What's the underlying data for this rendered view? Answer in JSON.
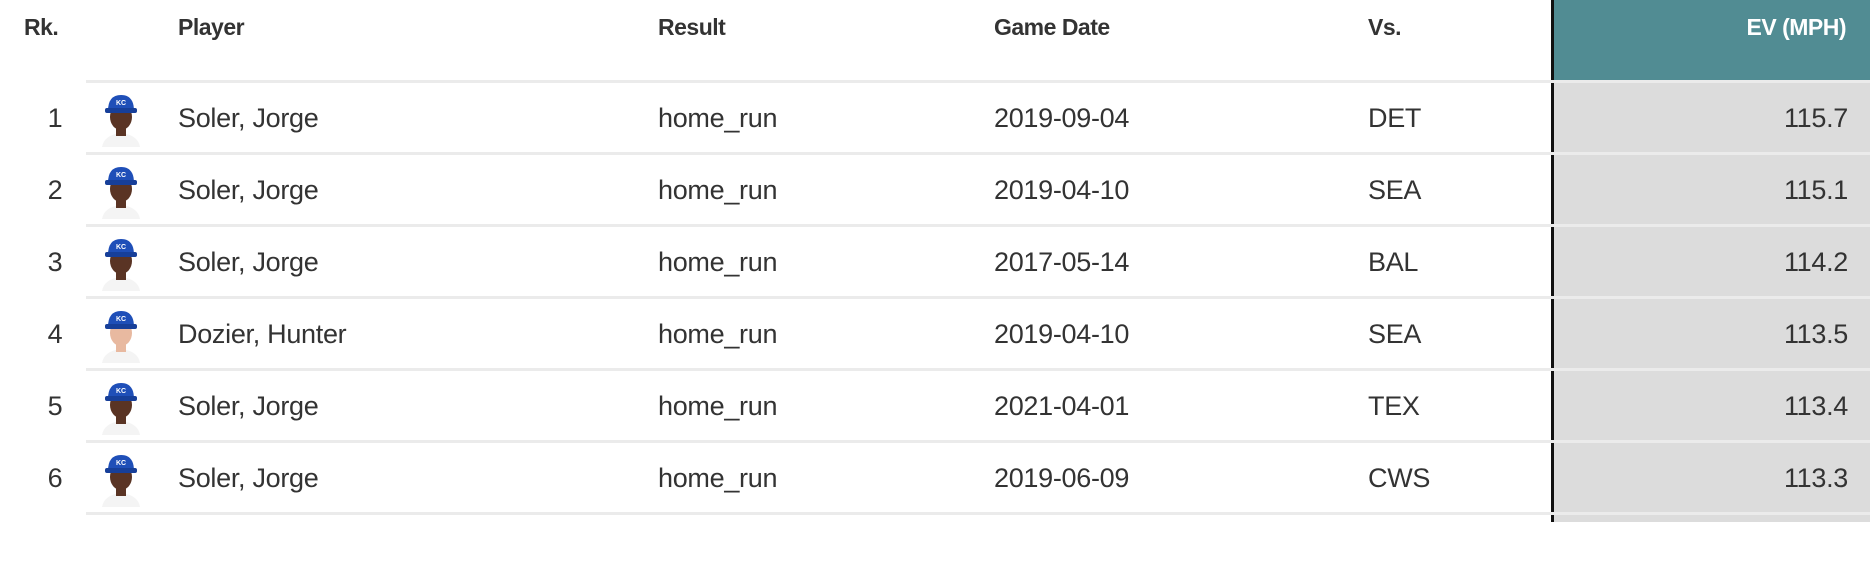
{
  "header": {
    "rank": "Rk.",
    "player": "Player",
    "result": "Result",
    "game_date": "Game Date",
    "vs": "Vs.",
    "ev": "EV (MPH)"
  },
  "colors": {
    "ev_header_bg": "#518c93",
    "ev_column_bg": "#dcdcdc",
    "cap": "#1f4fb8"
  },
  "rows": [
    {
      "rank": "1",
      "player": "Soler, Jorge",
      "result": "home_run",
      "date": "2019-09-04",
      "vs": "DET",
      "ev": "115.7",
      "avatar": "player-headshot"
    },
    {
      "rank": "2",
      "player": "Soler, Jorge",
      "result": "home_run",
      "date": "2019-04-10",
      "vs": "SEA",
      "ev": "115.1",
      "avatar": "player-headshot"
    },
    {
      "rank": "3",
      "player": "Soler, Jorge",
      "result": "home_run",
      "date": "2017-05-14",
      "vs": "BAL",
      "ev": "114.2",
      "avatar": "player-headshot"
    },
    {
      "rank": "4",
      "player": "Dozier, Hunter",
      "result": "home_run",
      "date": "2019-04-10",
      "vs": "SEA",
      "ev": "113.5",
      "avatar": "player-headshot"
    },
    {
      "rank": "5",
      "player": "Soler, Jorge",
      "result": "home_run",
      "date": "2021-04-01",
      "vs": "TEX",
      "ev": "113.4",
      "avatar": "player-headshot"
    },
    {
      "rank": "6",
      "player": "Soler, Jorge",
      "result": "home_run",
      "date": "2019-06-09",
      "vs": "CWS",
      "ev": "113.3",
      "avatar": "player-headshot"
    }
  ]
}
